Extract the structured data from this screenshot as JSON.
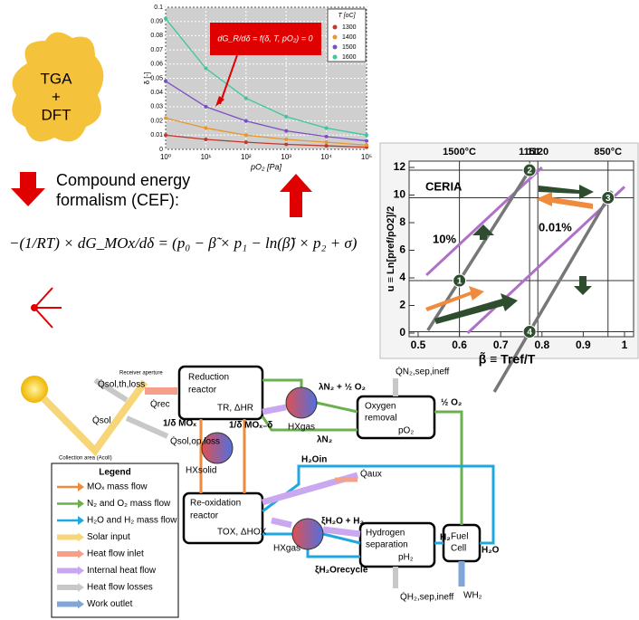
{
  "blob": {
    "lines": [
      "TGA",
      "+",
      "DFT"
    ]
  },
  "top_chart": {
    "type": "line",
    "y_label": "δ [-]",
    "x_label": "pO₂ [Pa]",
    "log_x": true,
    "xlim": [
      1,
      100000
    ],
    "ylim": [
      0,
      0.1
    ],
    "xticks": [
      {
        "value": 1,
        "label": "10⁰"
      },
      {
        "value": 10,
        "label": "10¹"
      },
      {
        "value": 100,
        "label": "10²"
      },
      {
        "value": 1000,
        "label": "10³"
      },
      {
        "value": 10000,
        "label": "10⁴"
      },
      {
        "value": 100000,
        "label": "10⁵"
      }
    ],
    "yticks": [
      0,
      0.01,
      0.02,
      0.03,
      0.04,
      0.05,
      0.06,
      0.07,
      0.08,
      0.09,
      0.1
    ],
    "grid": true,
    "legend_title": "T [oC]",
    "x": [
      1,
      10,
      100,
      1000,
      10000,
      100000
    ],
    "series": [
      {
        "name": "1300",
        "color": "#c0392b",
        "values": [
          0.01,
          0.007,
          0.005,
          0.0035,
          0.0025,
          0.0015
        ]
      },
      {
        "name": "1400",
        "color": "#e8962e",
        "values": [
          0.022,
          0.015,
          0.01,
          0.007,
          0.005,
          0.003
        ]
      },
      {
        "name": "1500",
        "color": "#7b4fc4",
        "values": [
          0.048,
          0.03,
          0.02,
          0.013,
          0.009,
          0.006
        ]
      },
      {
        "name": "1600",
        "color": "#3cc7a0",
        "values": [
          0.092,
          0.057,
          0.036,
          0.023,
          0.015,
          0.01
        ]
      }
    ],
    "annotation": "dG_R/dδ = f(δ, T, pO₂) = 0"
  },
  "cef": {
    "heading": [
      "Compound energy",
      "formalism (CEF):"
    ],
    "equation": "−(1/RT) × dG_MOx/dδ = (p₀ − β̃ × p₁ − ln(β̃) × p₂ + σ)"
  },
  "right_chart": {
    "type": "line",
    "y_label": "u ≡ Ln[pref/pO2]/2",
    "x_label": "β̃  ≡  Tref/T",
    "xlim": [
      0.5,
      1
    ],
    "ylim": [
      0,
      12
    ],
    "xticks": [
      0.5,
      0.6,
      0.7,
      0.8,
      0.9,
      1
    ],
    "yticks": [
      0,
      2,
      4,
      6,
      8,
      10,
      12
    ],
    "top_labels": [
      {
        "value": 0.6,
        "label": "1500°C"
      },
      {
        "value": 0.77,
        "label": "1151"
      },
      {
        "value": 0.79,
        "label": "1120"
      },
      {
        "value": 0.96,
        "label": "850°C"
      }
    ],
    "material": "CERIA",
    "points": [
      {
        "label": "1",
        "x": 0.6,
        "y": 3.8
      },
      {
        "label": "2",
        "x": 0.77,
        "y": 11.8
      },
      {
        "label": "3",
        "x": 0.96,
        "y": 9.8
      },
      {
        "label": "4",
        "x": 0.77,
        "y": 0.1
      }
    ],
    "isobars": [
      {
        "label": "10%",
        "color": "#b070c8",
        "x": [
          0.52,
          0.8
        ],
        "y": [
          4.2,
          12
        ]
      },
      {
        "label": "0.01%",
        "color": "#b070c8",
        "x": [
          0.62,
          1
        ],
        "y": [
          0,
          10.6
        ]
      }
    ]
  },
  "diagram": {
    "q_sol_th_loss": "Q̇sol,th,loss",
    "q_sol": "Q̇sol",
    "aperture": "Receiver aperture",
    "q_rec": "Q̇rec",
    "q_sol_op_loss": "Q̇sol,op,loss",
    "collection": "Collection area (Acoll)",
    "reduction": [
      "Reduction",
      "reactor",
      "TR, ΔHR"
    ],
    "hx_gas_top": "HXgas",
    "lambda_n2_o2": "λN₂ + ½ O₂",
    "q_n2_sep": "Q̇N₂,sep,ineff",
    "oxygen": [
      "Oxygen",
      "removal",
      "pO₂"
    ],
    "half_o2": "½ O₂",
    "lambda_n2": "λN₂",
    "mox": "1/δ MOₓ",
    "mox_delta": "1/δ MOₓ₋δ",
    "hx_solid": "HXsolid",
    "h2o_in": "H₂Oin",
    "q_aux": "Q̇aux",
    "reoxidation": [
      "Re-oxidation",
      "reactor",
      "TOX, ΔHOX"
    ],
    "xi_h2o_h2": "ξH₂O + H₂",
    "hx_gas_bottom": "HXgas",
    "hydrogen": [
      "Hydrogen",
      "separation",
      "pH₂"
    ],
    "h2": "H₂",
    "fuel_cell": [
      "Fuel",
      "Cell"
    ],
    "h2o": "H₂O",
    "xi_recycle": "ξH₂Orecycle",
    "q_h2_sep": "Q̇H₂,sep,ineff",
    "w_h2": "WH₂"
  },
  "legend": {
    "title": "Legend",
    "items": [
      {
        "label": "MOₓ mass flow",
        "color": "#f08a3c"
      },
      {
        "label": "N₂ and O₂ mass flow",
        "color": "#6ab04c"
      },
      {
        "label": "H₂O and H₂ mass flow",
        "color": "#1fa8e0"
      },
      {
        "label": "Solar input",
        "color": "#f7d67a"
      },
      {
        "label": "Heat flow inlet",
        "color": "#f4a08a"
      },
      {
        "label": "Internal heat flow",
        "color": "#c9a8f0"
      },
      {
        "label": "Heat flow losses",
        "color": "#c8c8c8"
      },
      {
        "label": "Work outlet",
        "color": "#7fa6d6"
      }
    ]
  }
}
